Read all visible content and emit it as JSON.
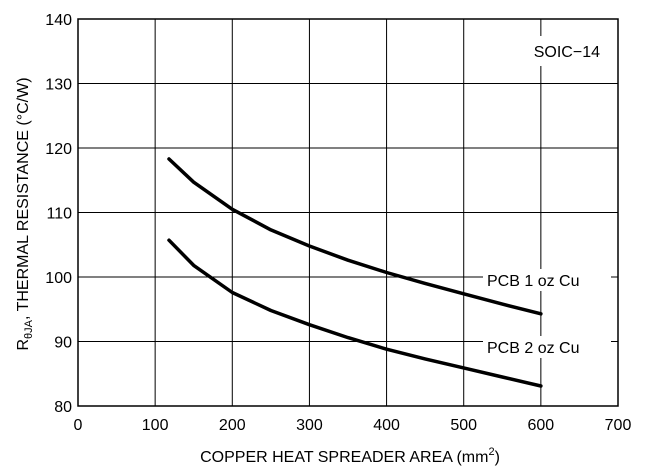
{
  "chart_data": {
    "type": "line",
    "xlabel": "COPPER HEAT SPREADER AREA (mm",
    "xlabel_sup": "2",
    "xlabel_close": ")",
    "ylabel_prefix": "R",
    "ylabel_sub": "θJA",
    "ylabel_rest": ", THERMAL RESISTANCE (°C/W)",
    "xlim": [
      0,
      700
    ],
    "ylim": [
      80,
      140
    ],
    "xticks": [
      0,
      100,
      200,
      300,
      400,
      500,
      600,
      700
    ],
    "yticks": [
      80,
      90,
      100,
      110,
      120,
      130,
      140
    ],
    "grid": true,
    "annotation": "SOIC−14",
    "series": [
      {
        "name": "PCB 1 oz Cu",
        "x": [
          118,
          150,
          200,
          250,
          300,
          350,
          400,
          450,
          500,
          550,
          600
        ],
        "y": [
          118.3,
          114.7,
          110.5,
          107.3,
          104.8,
          102.6,
          100.7,
          99.0,
          97.4,
          95.8,
          94.3
        ]
      },
      {
        "name": "PCB 2 oz Cu",
        "x": [
          118,
          150,
          200,
          250,
          300,
          350,
          400,
          450,
          500,
          550,
          600
        ],
        "y": [
          105.7,
          101.8,
          97.6,
          94.8,
          92.6,
          90.6,
          88.8,
          87.3,
          85.9,
          84.5,
          83.1
        ]
      }
    ]
  }
}
